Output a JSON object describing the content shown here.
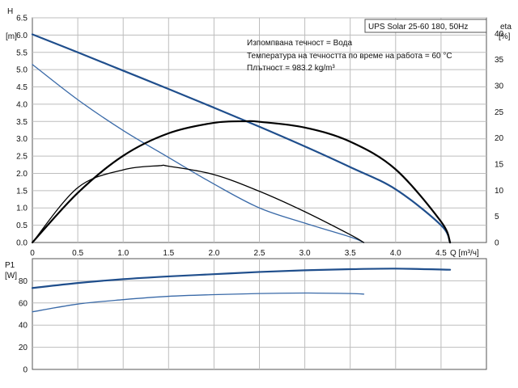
{
  "chart_data": [
    {
      "type": "line",
      "panel": "head_efficiency",
      "title": "UPS Solar 25-60 180, 50Hz",
      "annotations": [
        "Изпомпвана течност = Вода",
        "Температура на течността по време на работа = 60 °C",
        "Плътност = 983.2 kg/m³"
      ],
      "xlabel": "Q [m³/ч]",
      "ylabel": "H [m]",
      "y2label": "eta [%]",
      "xlim": [
        0,
        5.0
      ],
      "ylim": [
        0,
        6.5
      ],
      "y2lim": [
        0,
        43
      ],
      "x_ticks": [
        "0",
        "0.5",
        "1.0",
        "1.5",
        "2.0",
        "2.5",
        "3.0",
        "3.5",
        "4.0",
        "4.5"
      ],
      "y_ticks": [
        "0.0",
        "0.5",
        "1.0",
        "1.5",
        "2.0",
        "2.5",
        "3.0",
        "3.5",
        "4.0",
        "4.5",
        "5.0",
        "5.5",
        "6.0",
        "6.5"
      ],
      "y2_ticks": [
        "0",
        "5",
        "10",
        "15",
        "20",
        "25",
        "30",
        "35",
        "40"
      ],
      "grid": true,
      "series": [
        {
          "axis": "y",
          "color": "#1f4e8c",
          "width": 2.2,
          "x": [
            0,
            0.5,
            1.0,
            1.5,
            2.0,
            2.5,
            3.0,
            3.5,
            4.0,
            4.5,
            4.6
          ],
          "y": [
            6.02,
            5.5,
            4.97,
            4.44,
            3.9,
            3.35,
            2.78,
            2.18,
            1.54,
            0.5,
            0.0
          ]
        },
        {
          "axis": "y",
          "color": "#3a6aa8",
          "width": 1.3,
          "x": [
            0,
            0.5,
            1.0,
            1.5,
            2.0,
            2.5,
            3.0,
            3.5,
            3.65
          ],
          "y": [
            5.15,
            4.13,
            3.24,
            2.46,
            1.69,
            1.0,
            0.56,
            0.16,
            0.0
          ]
        },
        {
          "axis": "y2",
          "color": "#000000",
          "width": 2.2,
          "x": [
            0,
            0.5,
            1.0,
            1.5,
            2.0,
            2.35,
            2.5,
            3.0,
            3.5,
            4.0,
            4.5,
            4.6
          ],
          "y": [
            0,
            9.5,
            16.6,
            20.9,
            22.9,
            23.2,
            23.1,
            22.0,
            19.3,
            14.0,
            4.0,
            0.0
          ]
        },
        {
          "axis": "y2",
          "color": "#000000",
          "width": 1.3,
          "x": [
            0,
            0.5,
            1.0,
            1.4,
            1.5,
            2.0,
            2.5,
            3.0,
            3.5,
            3.65
          ],
          "y": [
            0,
            10.5,
            13.9,
            14.7,
            14.6,
            13.0,
            9.8,
            5.9,
            1.5,
            0.0
          ]
        }
      ]
    },
    {
      "type": "line",
      "panel": "power",
      "xlabel": "",
      "ylabel": "P1 [W]",
      "xlim": [
        0,
        5.0
      ],
      "ylim": [
        0,
        100
      ],
      "y_ticks": [
        "0",
        "20",
        "40",
        "60",
        "80"
      ],
      "grid": true,
      "series": [
        {
          "color": "#1f4e8c",
          "width": 2.2,
          "x": [
            0,
            0.5,
            1.0,
            1.5,
            2.0,
            2.5,
            3.0,
            3.5,
            4.0,
            4.6
          ],
          "y": [
            73.5,
            78,
            81.5,
            84,
            86,
            88,
            89.5,
            90.5,
            91,
            90
          ]
        },
        {
          "color": "#3a6aa8",
          "width": 1.3,
          "x": [
            0,
            0.5,
            1.0,
            1.5,
            2.0,
            2.5,
            3.0,
            3.5,
            3.65
          ],
          "y": [
            52,
            59,
            63,
            66,
            67.5,
            68.5,
            69,
            68.5,
            68
          ]
        }
      ]
    }
  ]
}
